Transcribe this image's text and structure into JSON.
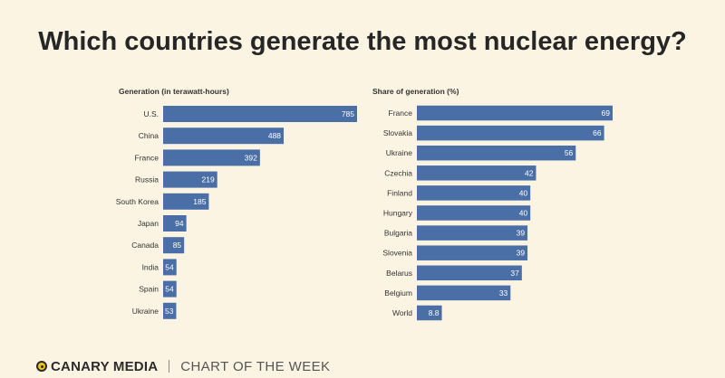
{
  "title": "Which countries generate the most nuclear energy?",
  "footer": {
    "brand": "CANARY MEDIA",
    "tagline": "CHART OF THE WEEK"
  },
  "colors": {
    "bar": "#4a6ea6",
    "background": "#fbf4e2",
    "label": "#333333"
  },
  "chart_data": [
    {
      "type": "bar",
      "orientation": "horizontal",
      "title": "Generation (in terawatt-hours)",
      "categories": [
        "U.S.",
        "China",
        "France",
        "Russia",
        "South Korea",
        "Japan",
        "Canada",
        "India",
        "Spain",
        "Ukraine"
      ],
      "values": [
        785,
        488,
        392,
        219,
        185,
        94,
        85,
        54,
        54,
        53
      ],
      "value_labels": [
        "785",
        "488",
        "392",
        "219",
        "185",
        "94",
        "85",
        "54",
        "54",
        "53"
      ],
      "xlim": [
        0,
        785
      ]
    },
    {
      "type": "bar",
      "orientation": "horizontal",
      "title": "Share of generation (%)",
      "categories": [
        "France",
        "Slovakia",
        "Ukraine",
        "Czechia",
        "Finland",
        "Hungary",
        "Bulgaria",
        "Slovenia",
        "Belarus",
        "Belgium",
        "World"
      ],
      "values": [
        69,
        66,
        56,
        42,
        40,
        40,
        39,
        39,
        37,
        33,
        8.8
      ],
      "value_labels": [
        "69",
        "66",
        "56",
        "42",
        "40",
        "40",
        "39",
        "39",
        "37",
        "33",
        "8.8"
      ],
      "xlim": [
        0,
        69
      ]
    }
  ]
}
